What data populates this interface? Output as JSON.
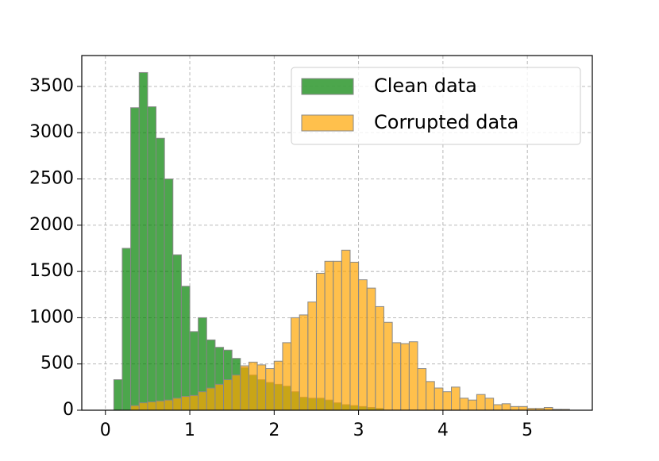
{
  "chart_data": {
    "type": "histogram",
    "series": [
      {
        "name": "Clean data",
        "color": "green",
        "bins": [
          0.1,
          0.2,
          0.3,
          0.4,
          0.5,
          0.6,
          0.7,
          0.8,
          0.9,
          1.0,
          1.1,
          1.2,
          1.3,
          1.4,
          1.5,
          1.6,
          1.7,
          1.8,
          1.9,
          2.0,
          2.1,
          2.2,
          2.3,
          2.4,
          2.5,
          2.6,
          2.7,
          2.8,
          2.9,
          3.0,
          3.1,
          3.2,
          3.3
        ],
        "values": [
          330,
          1750,
          3270,
          3650,
          3280,
          2940,
          2500,
          1680,
          1340,
          850,
          1000,
          760,
          680,
          650,
          560,
          460,
          380,
          330,
          300,
          280,
          260,
          200,
          140,
          130,
          130,
          110,
          80,
          60,
          50,
          40,
          30,
          20
        ]
      },
      {
        "name": "Corrupted data",
        "color": "orange",
        "bins": [
          0.3,
          0.4,
          0.5,
          0.6,
          0.7,
          0.8,
          0.9,
          1.0,
          1.1,
          1.2,
          1.3,
          1.4,
          1.5,
          1.6,
          1.7,
          1.8,
          1.9,
          2.0,
          2.1,
          2.2,
          2.3,
          2.4,
          2.5,
          2.6,
          2.7,
          2.8,
          2.9,
          3.0,
          3.1,
          3.2,
          3.3,
          3.4,
          3.5,
          3.6,
          3.7,
          3.8,
          3.9,
          4.0,
          4.1,
          4.2,
          4.3,
          4.4,
          4.5,
          4.6,
          4.7,
          4.8,
          4.9,
          5.0,
          5.1,
          5.2,
          5.3,
          5.4,
          5.5
        ],
        "values": [
          50,
          80,
          90,
          100,
          110,
          130,
          150,
          160,
          200,
          240,
          280,
          330,
          380,
          480,
          520,
          490,
          450,
          530,
          730,
          1000,
          1030,
          1170,
          1480,
          1610,
          1610,
          1730,
          1600,
          1410,
          1320,
          1120,
          950,
          730,
          720,
          740,
          450,
          310,
          240,
          200,
          250,
          130,
          110,
          170,
          130,
          60,
          70,
          40,
          40,
          20,
          20,
          30,
          10,
          10
        ]
      }
    ],
    "xlim": [
      -0.28,
      5.77
    ],
    "ylim": [
      0,
      3834
    ],
    "xticks": [
      0,
      1,
      2,
      3,
      4,
      5
    ],
    "yticks": [
      0,
      500,
      1000,
      1500,
      2000,
      2500,
      3000,
      3500
    ],
    "grid": true,
    "legend": "upper right"
  }
}
